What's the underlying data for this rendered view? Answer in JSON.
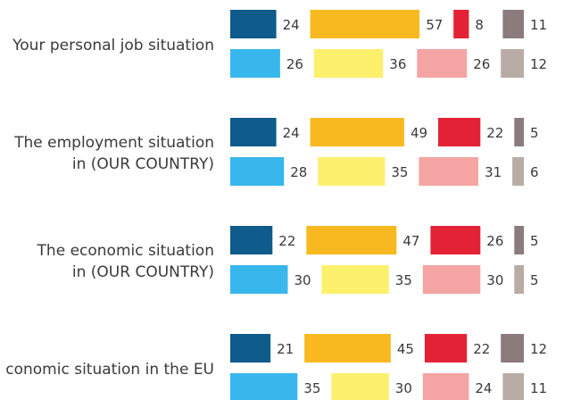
{
  "chart_data": {
    "type": "bar",
    "orientation": "horizontal",
    "stacking": "segmented-pairs",
    "title": "",
    "xlabel": "",
    "ylabel": "",
    "legend": "none",
    "grid": false,
    "colors": {
      "row1": [
        "#0f5b8c",
        "#f8b920",
        "#e32236",
        "#8b7b7d"
      ],
      "row2": [
        "#38b7ed",
        "#fdf06c",
        "#f4a5a3",
        "#b9aca6"
      ]
    },
    "categories": [
      {
        "label_lines": [
          "Your personal job situation"
        ],
        "row1": [
          24,
          57,
          8,
          11
        ],
        "row2": [
          26,
          36,
          26,
          12
        ]
      },
      {
        "label_lines": [
          "The employment situation",
          "in (OUR COUNTRY)"
        ],
        "row1": [
          24,
          49,
          22,
          5
        ],
        "row2": [
          28,
          35,
          31,
          6
        ]
      },
      {
        "label_lines": [
          "The economic situation",
          "in (OUR COUNTRY)"
        ],
        "row1": [
          22,
          47,
          26,
          5
        ],
        "row2": [
          30,
          35,
          30,
          5
        ]
      },
      {
        "label_lines": [
          "conomic situation in the EU"
        ],
        "row1": [
          21,
          45,
          22,
          12
        ],
        "row2": [
          35,
          30,
          24,
          11
        ]
      }
    ]
  }
}
